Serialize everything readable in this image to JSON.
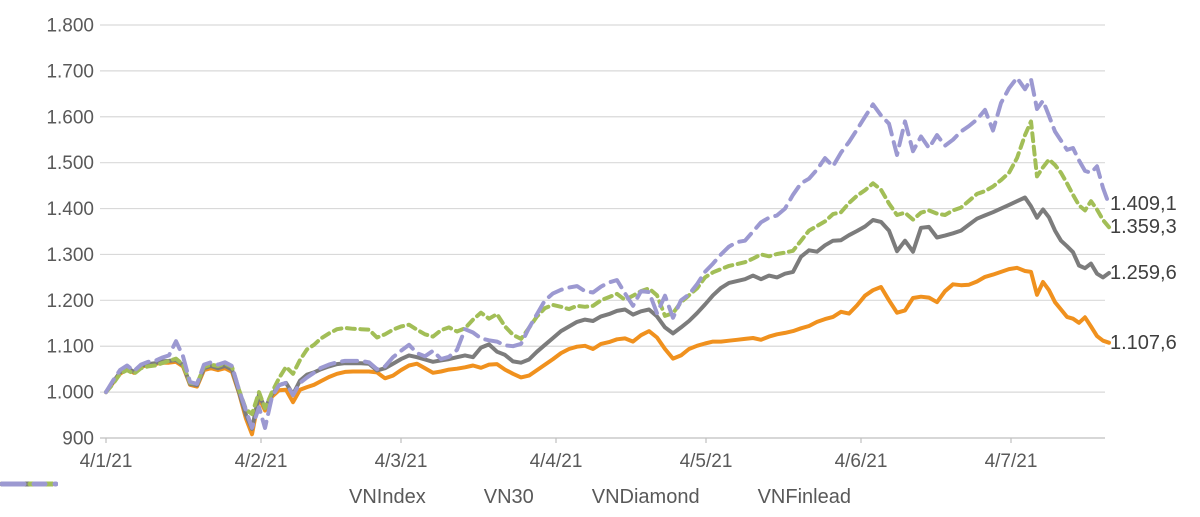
{
  "colors": {
    "background": "#FFFFFF",
    "grid": "#D9D9D9",
    "axis": "#BFBFBF",
    "tick_text": "#595959",
    "end_label_text": "#3F3F3F"
  },
  "chart_data": {
    "type": "line",
    "title": "",
    "xlabel": "",
    "ylabel": "",
    "grid": true,
    "legend_position": "bottom",
    "x_axis": {
      "note": "x in days since first point (4/1/21, d/m/yy)",
      "ticks": [
        {
          "day": 0,
          "label": "4/1/21"
        },
        {
          "day": 31,
          "label": "4/2/21"
        },
        {
          "day": 59,
          "label": "4/3/21"
        },
        {
          "day": 90,
          "label": "4/4/21"
        },
        {
          "day": 120,
          "label": "4/5/21"
        },
        {
          "day": 151,
          "label": "4/6/21"
        },
        {
          "day": 181,
          "label": "4/7/21"
        }
      ]
    },
    "y_axis": {
      "min": 900,
      "max": 1800,
      "ticks": [
        {
          "value": 1800,
          "label": "1.800"
        },
        {
          "value": 1700,
          "label": "1.700"
        },
        {
          "value": 1600,
          "label": "1.600"
        },
        {
          "value": 1500,
          "label": "1.500"
        },
        {
          "value": 1400,
          "label": "1.400"
        },
        {
          "value": 1300,
          "label": "1.300"
        },
        {
          "value": 1200,
          "label": "1.200"
        },
        {
          "value": 1100,
          "label": "1.100"
        },
        {
          "value": 1000,
          "label": "1.000"
        },
        {
          "value": 900,
          "label": "900"
        }
      ]
    },
    "x_days": [
      0,
      1.4,
      2.8,
      4.2,
      5.6,
      7,
      8.4,
      9.8,
      11.2,
      12.6,
      14,
      15.4,
      16.8,
      18.2,
      19.6,
      21,
      22.4,
      23.8,
      25.2,
      26.6,
      28,
      29.2,
      30.6,
      31.8,
      33.2,
      34.6,
      36,
      37.4,
      38.8,
      40.2,
      41.6,
      43,
      44.6,
      46.2,
      47.8,
      49.4,
      51,
      52.6,
      54.2,
      55.8,
      57.4,
      59,
      60.6,
      62.2,
      63.8,
      65.4,
      67,
      68.6,
      70.2,
      71.8,
      73.4,
      75,
      76.6,
      78.2,
      79.8,
      81.4,
      83,
      84.6,
      86.2,
      87.8,
      89.4,
      91,
      92.6,
      94.2,
      95.8,
      97.4,
      99,
      100.6,
      102.2,
      103.8,
      105.4,
      107,
      108.6,
      110.2,
      111.8,
      113.4,
      115,
      116.6,
      118.2,
      119.8,
      121.4,
      123,
      124.6,
      126.2,
      127.8,
      129.4,
      131,
      132.6,
      134.2,
      135.8,
      137.4,
      139,
      140.6,
      142.2,
      143.8,
      145.4,
      147,
      148.6,
      150.2,
      151.8,
      153.4,
      155,
      156.6,
      158.2,
      159.8,
      161.4,
      163,
      164.6,
      166.2,
      167.8,
      169.4,
      171,
      172.6,
      174.2,
      175.8,
      177.4,
      179,
      180.6,
      182.2,
      183.8,
      185,
      186.2,
      187.4,
      188.6,
      189.8,
      191,
      192.2,
      193.4,
      194.6,
      195.8,
      197,
      198.2,
      199.4,
      200.6
    ],
    "series": [
      {
        "name": "VNIndex",
        "color": "#F0911E",
        "style": "solid",
        "end_label": "1.107,6",
        "values": [
          1000,
          1020,
          1040,
          1050,
          1042,
          1055,
          1059,
          1061,
          1064,
          1064,
          1066,
          1056,
          1016,
          1012,
          1048,
          1052,
          1048,
          1052,
          1044,
          998,
          942,
          908,
          988,
          960,
          990,
          1004,
          1005,
          978,
          1005,
          1011,
          1016,
          1024,
          1033,
          1040,
          1044,
          1045,
          1045,
          1045,
          1043,
          1030,
          1036,
          1048,
          1058,
          1062,
          1052,
          1042,
          1045,
          1049,
          1051,
          1054,
          1058,
          1053,
          1060,
          1061,
          1049,
          1040,
          1032,
          1036,
          1048,
          1060,
          1072,
          1085,
          1094,
          1099,
          1101,
          1094,
          1105,
          1109,
          1115,
          1117,
          1110,
          1124,
          1133,
          1119,
          1094,
          1073,
          1080,
          1094,
          1101,
          1106,
          1110,
          1110,
          1112,
          1114,
          1116,
          1118,
          1114,
          1121,
          1126,
          1129,
          1133,
          1139,
          1144,
          1153,
          1159,
          1164,
          1175,
          1171,
          1189,
          1210,
          1222,
          1229,
          1200,
          1173,
          1178,
          1205,
          1208,
          1206,
          1196,
          1220,
          1235,
          1233,
          1234,
          1241,
          1251,
          1256,
          1262,
          1268,
          1271,
          1264,
          1262,
          1212,
          1240,
          1222,
          1196,
          1180,
          1164,
          1160,
          1151,
          1163,
          1143,
          1122,
          1112,
          1107.6
        ]
      },
      {
        "name": "VN30",
        "color": "#7C7C7C",
        "style": "solid",
        "end_label": "1.259,6",
        "values": [
          1000,
          1022,
          1043,
          1053,
          1044,
          1057,
          1061,
          1063,
          1067,
          1068,
          1070,
          1059,
          1018,
          1015,
          1052,
          1057,
          1052,
          1057,
          1049,
          1000,
          950,
          920,
          995,
          965,
          995,
          1015,
          1020,
          995,
          1025,
          1038,
          1043,
          1050,
          1056,
          1061,
          1063,
          1063,
          1063,
          1062,
          1047,
          1052,
          1062,
          1072,
          1080,
          1076,
          1071,
          1066,
          1069,
          1072,
          1076,
          1080,
          1076,
          1097,
          1104,
          1088,
          1081,
          1067,
          1064,
          1071,
          1088,
          1103,
          1118,
          1133,
          1143,
          1153,
          1158,
          1155,
          1165,
          1170,
          1177,
          1180,
          1169,
          1176,
          1180,
          1165,
          1141,
          1128,
          1141,
          1155,
          1172,
          1191,
          1211,
          1227,
          1238,
          1242,
          1246,
          1254,
          1246,
          1254,
          1250,
          1258,
          1262,
          1295,
          1309,
          1306,
          1320,
          1330,
          1331,
          1342,
          1351,
          1361,
          1375,
          1371,
          1352,
          1307,
          1330,
          1306,
          1358,
          1360,
          1337,
          1341,
          1346,
          1352,
          1365,
          1378,
          1385,
          1392,
          1400,
          1408,
          1416,
          1424,
          1405,
          1380,
          1398,
          1381,
          1352,
          1330,
          1318,
          1305,
          1276,
          1270,
          1280,
          1258,
          1250,
          1259.6
        ]
      },
      {
        "name": "VNDiamond",
        "color": "#A2BE57",
        "style": "dashed-short",
        "end_label": "1.359,3",
        "values": [
          1000,
          1018,
          1040,
          1048,
          1040,
          1052,
          1056,
          1058,
          1063,
          1068,
          1073,
          1060,
          1020,
          1018,
          1055,
          1060,
          1057,
          1062,
          1055,
          1005,
          962,
          952,
          1000,
          965,
          1000,
          1030,
          1055,
          1040,
          1070,
          1093,
          1103,
          1117,
          1128,
          1137,
          1140,
          1138,
          1137,
          1136,
          1119,
          1126,
          1136,
          1143,
          1147,
          1136,
          1126,
          1121,
          1135,
          1141,
          1132,
          1139,
          1158,
          1173,
          1160,
          1170,
          1143,
          1125,
          1116,
          1140,
          1165,
          1183,
          1190,
          1186,
          1181,
          1188,
          1186,
          1188,
          1200,
          1207,
          1214,
          1201,
          1210,
          1220,
          1226,
          1211,
          1166,
          1172,
          1196,
          1211,
          1226,
          1250,
          1261,
          1268,
          1275,
          1279,
          1283,
          1291,
          1300,
          1296,
          1301,
          1304,
          1308,
          1330,
          1352,
          1362,
          1372,
          1388,
          1392,
          1412,
          1428,
          1440,
          1455,
          1441,
          1411,
          1386,
          1391,
          1376,
          1391,
          1396,
          1389,
          1386,
          1396,
          1402,
          1417,
          1432,
          1438,
          1448,
          1462,
          1478,
          1510,
          1560,
          1590,
          1470,
          1490,
          1507,
          1495,
          1478,
          1455,
          1430,
          1407,
          1396,
          1416,
          1398,
          1375,
          1359.3
        ]
      },
      {
        "name": "VNFinlead",
        "color": "#9C99D1",
        "style": "dashed-long",
        "end_label": "1.409,1",
        "values": [
          1000,
          1025,
          1048,
          1058,
          1046,
          1060,
          1066,
          1068,
          1075,
          1080,
          1111,
          1078,
          1022,
          1018,
          1060,
          1065,
          1060,
          1065,
          1057,
          1005,
          960,
          922,
          967,
          922,
          990,
          1015,
          1020,
          993,
          1020,
          1032,
          1042,
          1053,
          1060,
          1065,
          1068,
          1068,
          1068,
          1065,
          1050,
          1056,
          1076,
          1090,
          1103,
          1085,
          1078,
          1090,
          1072,
          1077,
          1092,
          1137,
          1130,
          1117,
          1113,
          1110,
          1102,
          1100,
          1105,
          1140,
          1170,
          1200,
          1215,
          1223,
          1228,
          1231,
          1220,
          1217,
          1230,
          1239,
          1244,
          1215,
          1188,
          1220,
          1218,
          1172,
          1210,
          1162,
          1200,
          1213,
          1235,
          1262,
          1280,
          1300,
          1317,
          1327,
          1330,
          1350,
          1370,
          1380,
          1385,
          1400,
          1430,
          1455,
          1465,
          1485,
          1510,
          1492,
          1522,
          1545,
          1572,
          1600,
          1627,
          1603,
          1585,
          1517,
          1590,
          1525,
          1557,
          1532,
          1560,
          1537,
          1550,
          1568,
          1580,
          1594,
          1615,
          1570,
          1630,
          1662,
          1685,
          1660,
          1682,
          1617,
          1635,
          1602,
          1568,
          1548,
          1528,
          1532,
          1505,
          1482,
          1478,
          1492,
          1445,
          1409.1
        ]
      }
    ]
  }
}
